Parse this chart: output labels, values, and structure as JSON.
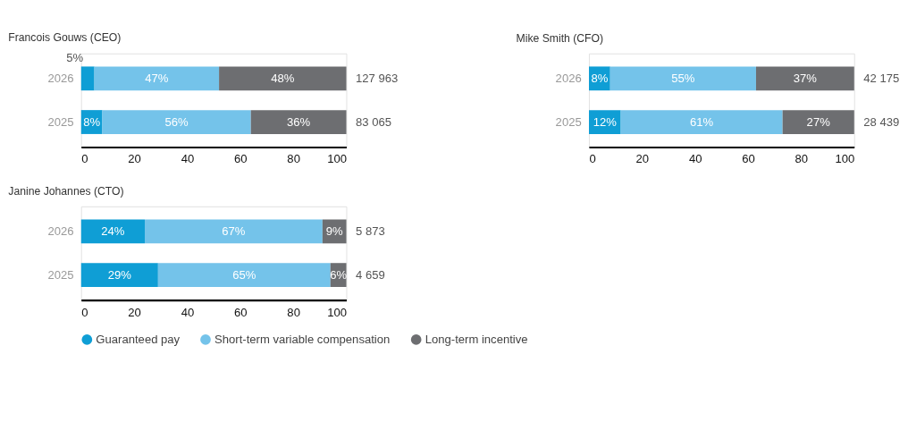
{
  "chart_data": [
    {
      "type": "bar",
      "orientation": "horizontal",
      "stacked": true,
      "title": "Francois Gouws (CEO)",
      "categories": [
        "2026",
        "2025"
      ],
      "xlim": [
        0,
        100
      ],
      "xticks": [
        0,
        20,
        40,
        60,
        80,
        100
      ],
      "grid": false,
      "series": [
        {
          "color": "#0f9ed5",
          "values": [
            5,
            8
          ],
          "value_labels": [
            "5%",
            "8%"
          ]
        },
        {
          "color": "#74c3ea",
          "values": [
            47,
            56
          ],
          "value_labels": [
            "47%",
            "56%"
          ]
        },
        {
          "color": "#6d6e71",
          "values": [
            48,
            36
          ],
          "value_labels": [
            "48%",
            "36%"
          ]
        }
      ],
      "annotations": [
        "127 963",
        "83 065"
      ]
    },
    {
      "type": "bar",
      "orientation": "horizontal",
      "stacked": true,
      "title": "Mike Smith (CFO)",
      "categories": [
        "2026",
        "2025"
      ],
      "xlim": [
        0,
        100
      ],
      "xticks": [
        0,
        20,
        40,
        60,
        80,
        100
      ],
      "grid": false,
      "series": [
        {
          "color": "#0f9ed5",
          "values": [
            8,
            12
          ],
          "value_labels": [
            "8%",
            "12%"
          ]
        },
        {
          "color": "#74c3ea",
          "values": [
            55,
            61
          ],
          "value_labels": [
            "55%",
            "61%"
          ]
        },
        {
          "color": "#6d6e71",
          "values": [
            37,
            27
          ],
          "value_labels": [
            "37%",
            "27%"
          ]
        }
      ],
      "annotations": [
        "42 175",
        "28 439"
      ]
    },
    {
      "type": "bar",
      "orientation": "horizontal",
      "stacked": true,
      "title": "Janine Johannes (CTO)",
      "categories": [
        "2026",
        "2025"
      ],
      "xlim": [
        0,
        100
      ],
      "xticks": [
        0,
        20,
        40,
        60,
        80,
        100
      ],
      "grid": false,
      "legend": "bottom",
      "series": [
        {
          "name": "Guaranteed pay",
          "color": "#0f9ed5",
          "values": [
            24,
            29
          ],
          "value_labels": [
            "24%",
            "29%"
          ]
        },
        {
          "name": "Short-term variable compensation",
          "color": "#74c3ea",
          "values": [
            67,
            65
          ],
          "value_labels": [
            "67%",
            "65%"
          ]
        },
        {
          "name": "Long-term incentive",
          "color": "#6d6e71",
          "values": [
            9,
            6
          ],
          "value_labels": [
            "9%",
            "6%"
          ]
        }
      ],
      "annotations": [
        "5 873",
        "4 659"
      ]
    }
  ]
}
